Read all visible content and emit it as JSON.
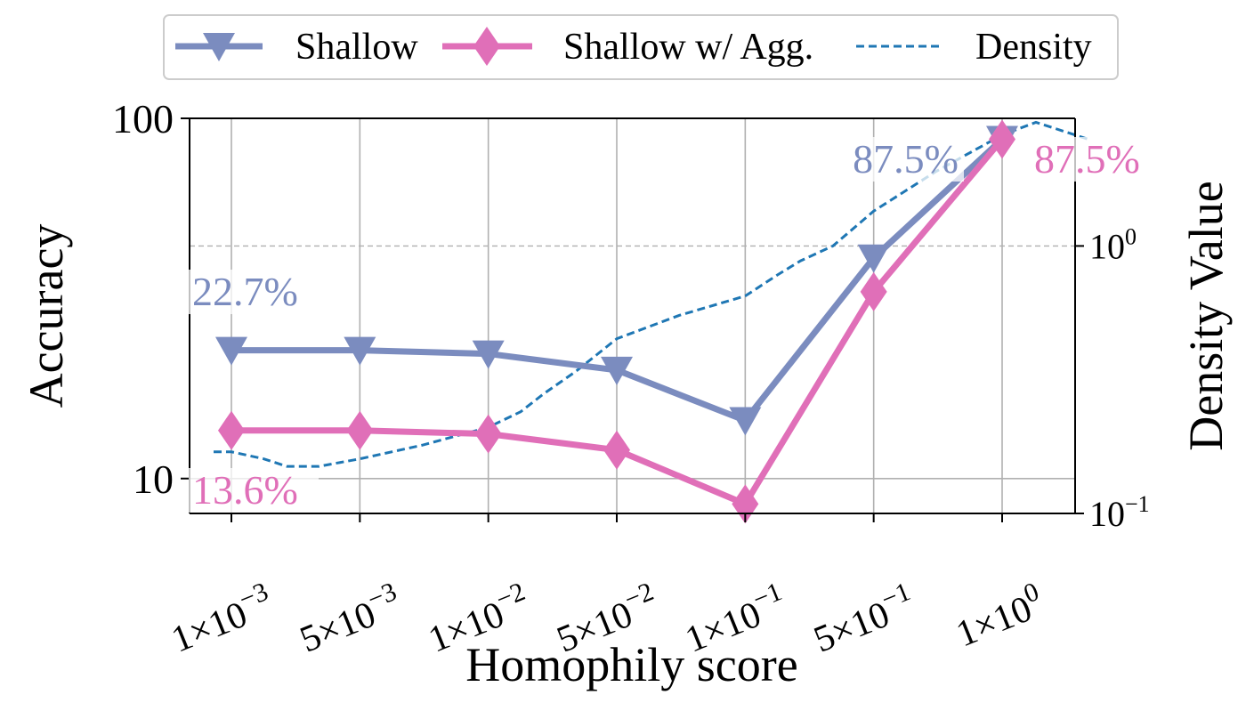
{
  "colors": {
    "shallow": "#7b8cbf",
    "shallow_agg": "#e06fb8",
    "density": "#1f77b4",
    "grid": "#b0b0b0"
  },
  "chart_data": {
    "type": "line",
    "xlabel": "Homophily score",
    "ylabel": "Accuracy",
    "ylabel_right": "Density Value",
    "categories": [
      "1×10",
      "5×10",
      "1×10",
      "5×10",
      "1×10",
      "5×10",
      "1×10"
    ],
    "category_exponents": [
      "−3",
      "−3",
      "−2",
      "−2",
      "−1",
      "−1",
      "0"
    ],
    "x_values": [
      0.001,
      0.005,
      0.01,
      0.05,
      0.1,
      0.5,
      1.0
    ],
    "y_scale": "log",
    "ylim": [
      8,
      100
    ],
    "yticks": [
      "10",
      "100"
    ],
    "y_right_scale": "log",
    "y_right_lim": [
      0.1,
      3.0
    ],
    "y_right_tick_base": "10",
    "y_right_ticks": [
      "−1",
      "0"
    ],
    "grid": true,
    "legend_position": "top-center",
    "series": [
      {
        "name": "Shallow",
        "marker": "triangle-down",
        "values": [
          22.7,
          22.7,
          22.2,
          20.0,
          14.5,
          41.0,
          87.5
        ]
      },
      {
        "name": "Shallow w/ Agg.",
        "marker": "diamond",
        "values": [
          13.6,
          13.6,
          13.3,
          12.0,
          8.5,
          33.0,
          87.5
        ]
      },
      {
        "name": "Density",
        "style": "dashed",
        "x": [
          0.0008,
          0.001,
          0.0015,
          0.002,
          0.003,
          0.005,
          0.007,
          0.01,
          0.015,
          0.02,
          0.03,
          0.05,
          0.07,
          0.1,
          0.15,
          0.2,
          0.3,
          0.5,
          0.7,
          1.0,
          1.2,
          1.6
        ],
        "values": [
          0.17,
          0.17,
          0.16,
          0.15,
          0.15,
          0.16,
          0.18,
          0.21,
          0.24,
          0.28,
          0.34,
          0.45,
          0.55,
          0.65,
          0.78,
          0.88,
          1.0,
          1.35,
          1.9,
          2.6,
          2.9,
          2.5
        ]
      }
    ],
    "annotations": [
      {
        "text": "22.7%",
        "series": "Shallow"
      },
      {
        "text": "13.6%",
        "series": "Shallow w/ Agg."
      },
      {
        "text": "87.5%",
        "series": "Shallow"
      },
      {
        "text": "87.5%",
        "series": "Shallow w/ Agg."
      }
    ]
  }
}
